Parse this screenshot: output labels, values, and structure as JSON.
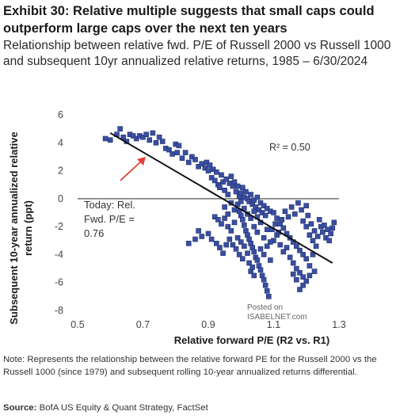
{
  "header": {
    "title": "Exhibit 30: Relative multiple suggests that small caps could outperform large caps over the next ten years",
    "subtitle": "Relationship between relative fwd. P/E of Russell 2000 vs Russell 1000 and subsequent 10yr annualized relative returns, 1985 – 6/30/2024"
  },
  "footer": {
    "note": "Note: Represents the relationship between the relative forward PE for the Russell 2000 vs the Russell 1000 (since 1979) and subsequent rolling 10-year annualized returns differential.",
    "source_label": "Source:",
    "source_text": "BofA US Equity & Quant Strategy, FactSet"
  },
  "watermark": {
    "line1": "Posted on",
    "line2": "ISABELNET.com"
  },
  "colors": {
    "marker": "#3a4fa0",
    "marker_edge": "#1f2f70",
    "trend": "#111111",
    "arrow": "#e0403a",
    "zero_line": "#555555"
  },
  "chart_data": {
    "type": "scatter",
    "xlabel": "Relative forward P/E (R2 vs. R1)",
    "ylabel": "Subsequent 10-year annualized relative return (ppt)",
    "xlim": [
      0.5,
      1.3
    ],
    "ylim": [
      -8,
      6
    ],
    "xticks": [
      "0.5",
      "0.7",
      "0.9",
      "1.1",
      "1.3"
    ],
    "yticks": [
      "6",
      "4",
      "2",
      "0",
      "-2",
      "-4",
      "-6",
      "-8"
    ],
    "r2_label": "R² = 0.50",
    "annotation": "Today: Rel. Fwd. P/E = 0.76",
    "annotation_lines": [
      "Today: Rel.",
      "Fwd. P/E =",
      "0.76"
    ],
    "trendline": {
      "x": [
        0.6,
        1.28
      ],
      "y": [
        4.7,
        -4.6
      ]
    },
    "series": [
      {
        "points": [
          [
            0.585,
            4.3
          ],
          [
            0.6,
            4.2
          ],
          [
            0.62,
            4.6
          ],
          [
            0.63,
            5.0
          ],
          [
            0.64,
            4.4
          ],
          [
            0.65,
            4.1
          ],
          [
            0.66,
            4.6
          ],
          [
            0.67,
            4.5
          ],
          [
            0.68,
            4.3
          ],
          [
            0.69,
            4.5
          ],
          [
            0.7,
            4.4
          ],
          [
            0.71,
            4.6
          ],
          [
            0.72,
            4.2
          ],
          [
            0.73,
            4.7
          ],
          [
            0.74,
            4.0
          ],
          [
            0.75,
            4.4
          ],
          [
            0.76,
            4.1
          ],
          [
            0.77,
            3.6
          ],
          [
            0.78,
            3.5
          ],
          [
            0.79,
            3.2
          ],
          [
            0.8,
            3.9
          ],
          [
            0.805,
            3.3
          ],
          [
            0.81,
            3.8
          ],
          [
            0.82,
            2.9
          ],
          [
            0.83,
            3.3
          ],
          [
            0.84,
            2.6
          ],
          [
            0.85,
            3.0
          ],
          [
            0.86,
            2.8
          ],
          [
            0.87,
            2.3
          ],
          [
            0.88,
            2.5
          ],
          [
            0.89,
            2.2
          ],
          [
            0.895,
            2.6
          ],
          [
            0.9,
            2.0
          ],
          [
            0.905,
            2.4
          ],
          [
            0.91,
            1.5
          ],
          [
            0.915,
            2.1
          ],
          [
            0.92,
            1.3
          ],
          [
            0.925,
            1.9
          ],
          [
            0.93,
            1.0
          ],
          [
            0.935,
            0.8
          ],
          [
            0.94,
            1.7
          ],
          [
            0.945,
            1.2
          ],
          [
            0.95,
            0.6
          ],
          [
            0.955,
            1.4
          ],
          [
            0.96,
            0.3
          ],
          [
            0.965,
            1.1
          ],
          [
            0.97,
            1.6
          ],
          [
            0.975,
            0.9
          ],
          [
            0.98,
            1.2
          ],
          [
            0.985,
            0.5
          ],
          [
            0.99,
            0.9
          ],
          [
            0.995,
            0.2
          ],
          [
            1.0,
            0.4
          ],
          [
            1.005,
            0.8
          ],
          [
            1.01,
            0.1
          ],
          [
            1.015,
            0.5
          ],
          [
            1.02,
            0.0
          ],
          [
            1.025,
            -0.2
          ],
          [
            1.03,
            0.3
          ],
          [
            1.035,
            -0.4
          ],
          [
            1.04,
            -0.1
          ],
          [
            1.045,
            -0.6
          ],
          [
            1.05,
            0.1
          ],
          [
            1.055,
            -0.8
          ],
          [
            1.06,
            -0.3
          ],
          [
            1.065,
            -1.0
          ],
          [
            1.07,
            -0.5
          ],
          [
            1.075,
            -1.2
          ],
          [
            1.08,
            -0.7
          ],
          [
            1.09,
            -0.9
          ],
          [
            0.99,
            -0.4
          ],
          [
            0.995,
            -0.9
          ],
          [
            1.0,
            -1.2
          ],
          [
            1.005,
            -1.5
          ],
          [
            1.01,
            -1.9
          ],
          [
            1.015,
            -2.3
          ],
          [
            1.02,
            -2.6
          ],
          [
            1.025,
            -2.9
          ],
          [
            1.03,
            -3.2
          ],
          [
            1.035,
            -3.5
          ],
          [
            1.04,
            -3.8
          ],
          [
            1.045,
            -4.2
          ],
          [
            1.05,
            -4.4
          ],
          [
            1.055,
            -4.8
          ],
          [
            1.06,
            -5.1
          ],
          [
            1.065,
            -5.5
          ],
          [
            1.07,
            -5.8
          ],
          [
            1.075,
            -6.2
          ],
          [
            1.08,
            -6.6
          ],
          [
            1.085,
            -7.0
          ],
          [
            0.92,
            -1.3
          ],
          [
            0.93,
            -1.5
          ],
          [
            0.94,
            -1.8
          ],
          [
            0.95,
            -1.4
          ],
          [
            0.96,
            -2.0
          ],
          [
            0.97,
            -2.3
          ],
          [
            0.98,
            -1.7
          ],
          [
            0.965,
            -2.9
          ],
          [
            0.975,
            -3.3
          ],
          [
            0.985,
            -3.6
          ],
          [
            0.87,
            -2.3
          ],
          [
            0.88,
            -2.7
          ],
          [
            0.9,
            -2.5
          ],
          [
            0.91,
            -2.9
          ],
          [
            0.925,
            -3.2
          ],
          [
            0.935,
            -3.5
          ],
          [
            0.945,
            -3.9
          ],
          [
            0.955,
            -3.3
          ],
          [
            0.99,
            -2.8
          ],
          [
            1.0,
            -3.1
          ],
          [
            0.84,
            -3.2
          ],
          [
            0.86,
            -2.9
          ],
          [
            0.995,
            -4.0
          ],
          [
            1.005,
            -4.3
          ],
          [
            1.01,
            -3.4
          ],
          [
            1.02,
            -3.9
          ],
          [
            1.025,
            -4.6
          ],
          [
            1.03,
            -5.2
          ],
          [
            1.035,
            -4.9
          ],
          [
            1.04,
            -5.5
          ],
          [
            1.1,
            -1.0
          ],
          [
            1.11,
            -1.4
          ],
          [
            1.12,
            -1.8
          ],
          [
            1.13,
            -2.1
          ],
          [
            1.14,
            -2.5
          ],
          [
            1.15,
            -2.8
          ],
          [
            1.16,
            -3.1
          ],
          [
            1.17,
            -3.4
          ],
          [
            1.18,
            -3.7
          ],
          [
            1.19,
            -4.0
          ],
          [
            1.1,
            -3.0
          ],
          [
            1.11,
            -2.6
          ],
          [
            1.12,
            -3.3
          ],
          [
            1.13,
            -3.8
          ],
          [
            1.14,
            -3.5
          ],
          [
            1.15,
            -4.2
          ],
          [
            1.16,
            -4.6
          ],
          [
            1.17,
            -5.0
          ],
          [
            1.18,
            -5.3
          ],
          [
            1.19,
            -5.6
          ],
          [
            1.095,
            -2.2
          ],
          [
            1.105,
            -1.8
          ],
          [
            1.115,
            -2.4
          ],
          [
            1.125,
            -1.5
          ],
          [
            1.135,
            -0.9
          ],
          [
            1.145,
            -1.3
          ],
          [
            1.155,
            -0.6
          ],
          [
            1.165,
            -1.1
          ],
          [
            1.175,
            -0.3
          ],
          [
            1.185,
            -0.8
          ],
          [
            1.19,
            -1.6
          ],
          [
            1.2,
            -0.5
          ],
          [
            1.2,
            -2.0
          ],
          [
            1.205,
            -1.2
          ],
          [
            1.21,
            -2.6
          ],
          [
            1.215,
            -1.8
          ],
          [
            1.22,
            -3.0
          ],
          [
            1.225,
            -2.3
          ],
          [
            1.23,
            -3.4
          ],
          [
            1.235,
            -2.7
          ],
          [
            1.2,
            -4.3
          ],
          [
            1.21,
            -4.8
          ],
          [
            1.22,
            -4.0
          ],
          [
            1.225,
            -5.2
          ],
          [
            1.19,
            -6.2
          ],
          [
            1.2,
            -5.9
          ],
          [
            1.21,
            -5.5
          ],
          [
            1.18,
            -6.5
          ],
          [
            1.17,
            -5.8
          ],
          [
            1.16,
            -5.4
          ],
          [
            1.24,
            -1.5
          ],
          [
            1.245,
            -2.0
          ],
          [
            1.25,
            -2.4
          ],
          [
            1.255,
            -1.9
          ],
          [
            1.26,
            -2.8
          ],
          [
            1.265,
            -2.2
          ],
          [
            1.27,
            -3.0
          ],
          [
            1.275,
            -2.5
          ],
          [
            1.28,
            -2.1
          ],
          [
            1.285,
            -1.7
          ],
          [
            1.04,
            -2.0
          ],
          [
            1.05,
            -2.4
          ],
          [
            1.06,
            -1.7
          ],
          [
            1.07,
            -2.8
          ],
          [
            1.08,
            -2.2
          ],
          [
            1.09,
            -3.1
          ],
          [
            1.06,
            -3.6
          ],
          [
            1.07,
            -4.0
          ],
          [
            1.08,
            -3.4
          ],
          [
            1.09,
            -4.4
          ],
          [
            0.97,
            -0.3
          ],
          [
            0.98,
            -0.8
          ],
          [
            1.0,
            -0.2
          ],
          [
            1.01,
            -0.7
          ],
          [
            1.02,
            -1.1
          ],
          [
            1.03,
            -1.4
          ],
          [
            1.04,
            -0.9
          ],
          [
            1.05,
            -1.3
          ],
          [
            0.96,
            -1.1
          ],
          [
            0.95,
            -0.6
          ]
        ]
      }
    ]
  }
}
